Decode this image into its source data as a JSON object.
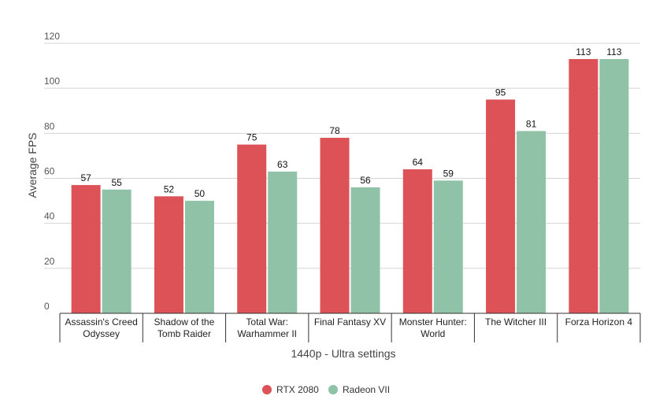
{
  "chart_data": {
    "type": "bar",
    "title": "",
    "xlabel": "1440p - Ultra settings",
    "ylabel": "Average FPS",
    "ylim": [
      0,
      120
    ],
    "yticks": [
      0,
      20,
      40,
      60,
      80,
      100,
      120
    ],
    "grid": true,
    "legend_position": "bottom",
    "categories": [
      [
        "Assassin's Creed",
        "Odyssey"
      ],
      [
        "Shadow of the",
        "Tomb Raider"
      ],
      [
        "Total War:",
        "Warhammer II"
      ],
      [
        "Final Fantasy XV"
      ],
      [
        "Monster Hunter:",
        "World"
      ],
      [
        "The Witcher III"
      ],
      [
        "Forza Horizon 4"
      ]
    ],
    "series": [
      {
        "name": "RTX 2080",
        "color": "#dc5257",
        "values": [
          57,
          52,
          75,
          78,
          64,
          95,
          113
        ]
      },
      {
        "name": "Radeon VII",
        "color": "#8fc2a6",
        "values": [
          55,
          50,
          63,
          56,
          59,
          81,
          113
        ]
      }
    ]
  }
}
